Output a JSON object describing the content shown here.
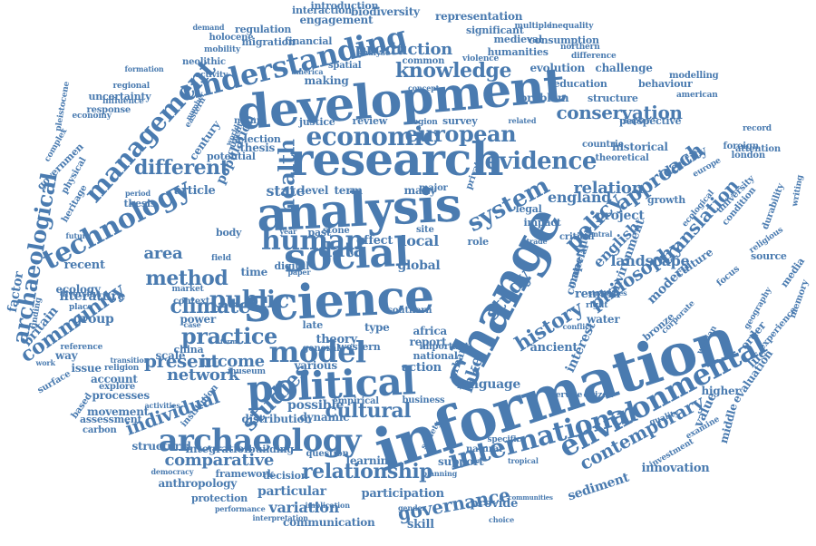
{
  "colors": {
    "word": "#4a7bb0",
    "background": "#ffffff"
  },
  "words": [
    "information",
    "change",
    "science",
    "analysis",
    "development",
    "research",
    "social",
    "political",
    "archaeology",
    "international",
    "environmental",
    "human",
    "technology",
    "understanding",
    "economic",
    "management",
    "data",
    "system",
    "model",
    "history",
    "public",
    "knowledge",
    "european",
    "evidence",
    "approach",
    "practice",
    "studies",
    "cultural",
    "archaeological",
    "relationship",
    "policy",
    "study",
    "health",
    "method",
    "different",
    "climate",
    "community",
    "comparative",
    "individual",
    "translation",
    "conservation",
    "contemporary",
    "governance",
    "production",
    "network",
    "evaluation",
    "introduction",
    "biodiversity",
    "interaction",
    "engagement",
    "representation",
    "significant",
    "regulation",
    "financial",
    "multiple",
    "inequality",
    "demand",
    "medieval",
    "holocene",
    "migration",
    "consumption",
    "northern",
    "mobility",
    "humanities",
    "difference",
    "neolithic",
    "common",
    "violence",
    "formation",
    "spatial",
    "analyse",
    "activity",
    "making",
    "evolution",
    "challenge",
    "modelling",
    "regional",
    "america",
    "concept",
    "education",
    "behaviour",
    "uncertainty",
    "problem",
    "structure",
    "american",
    "pleistocene",
    "influence",
    "response",
    "eastern",
    "number",
    "economy",
    "nature",
    "justice",
    "review",
    "region",
    "survey",
    "related",
    "complex",
    "current",
    "perspective",
    "chapter",
    "record",
    "century",
    "selection",
    "population",
    "foreign",
    "world",
    "thesis",
    "level",
    "term",
    "many",
    "major",
    "private",
    "countrie",
    "theoretical",
    "attention",
    "london",
    "potential",
    "historical",
    "identity",
    "governmen",
    "physical",
    "heritage",
    "relation",
    "growth",
    "europe",
    "article",
    "england",
    "condition",
    "university",
    "durability",
    "writing",
    "period",
    "thesis",
    "state",
    "legal",
    "impact",
    "project",
    "ecological",
    "religious",
    "future",
    "body",
    "year",
    "past",
    "stone",
    "site",
    "effect",
    "local",
    "role",
    "trade",
    "critical",
    "central",
    "landscape",
    "environment",
    "english",
    "culture",
    "factor",
    "recent",
    "area",
    "field",
    "time",
    "digital",
    "paper",
    "global",
    "material",
    "competition",
    "philosophy",
    "modern",
    "source",
    "media",
    "ecology",
    "market",
    "context",
    "focus",
    "diversity",
    "literature",
    "finding",
    "group",
    "place",
    "power",
    "right",
    "water",
    "remain",
    "interest",
    "strategies",
    "corporate",
    "geography",
    "experience",
    "memory",
    "britain",
    "form",
    "case",
    "late",
    "type",
    "africa",
    "report",
    "southern",
    "important",
    "ancient",
    "conflict",
    "bronze",
    "order",
    "life",
    "way",
    "issue",
    "china",
    "scale",
    "theory",
    "western",
    "general",
    "national",
    "urban",
    "lake",
    "woman",
    "reference",
    "present",
    "income",
    "various",
    "action",
    "work",
    "account",
    "religion",
    "transition",
    "museum",
    "language",
    "service",
    "citizen",
    "surface",
    "explore",
    "processes",
    "distribution",
    "empirical",
    "business",
    "higher",
    "value",
    "middle",
    "based",
    "movement",
    "activities",
    "possible",
    "dynamic",
    "society",
    "quality",
    "examine",
    "carbon",
    "assessment",
    "institution",
    "question",
    "natural",
    "specific",
    "structural",
    "integration",
    "building",
    "learning",
    "support",
    "tropical",
    "innovation",
    "democracy",
    "framework",
    "decision",
    "planning",
    "investment",
    "anthropology",
    "particular",
    "implication",
    "communities",
    "protection",
    "variation",
    "participation",
    "provide",
    "sediment",
    "performance",
    "interpretation",
    "communication",
    "gender",
    "choice",
    "skill"
  ]
}
